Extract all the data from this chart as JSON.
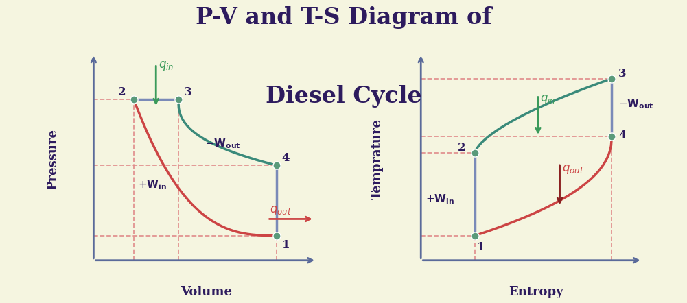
{
  "background_color": "#f5f5e0",
  "title_line1": "P-V and T-S Diagram of",
  "title_line2": "Diesel Cycle",
  "title_color": "#2d1b5e",
  "title_fontsize": 24,
  "axis_color": "#5a6a9a",
  "label_color": "#2d1b5e",
  "dashed_color": "#e08888",
  "green_color": "#3a9a5a",
  "teal_color": "#3a8a7a",
  "red_color": "#cc4444",
  "dark_red_color": "#8b2020",
  "blue_color": "#7a8ab8",
  "point_color": "#5a9a7a",
  "pv_xlabel": "Volume",
  "pv_ylabel": "Pressure",
  "ts_xlabel": "Entropy",
  "ts_ylabel": "Temprature"
}
